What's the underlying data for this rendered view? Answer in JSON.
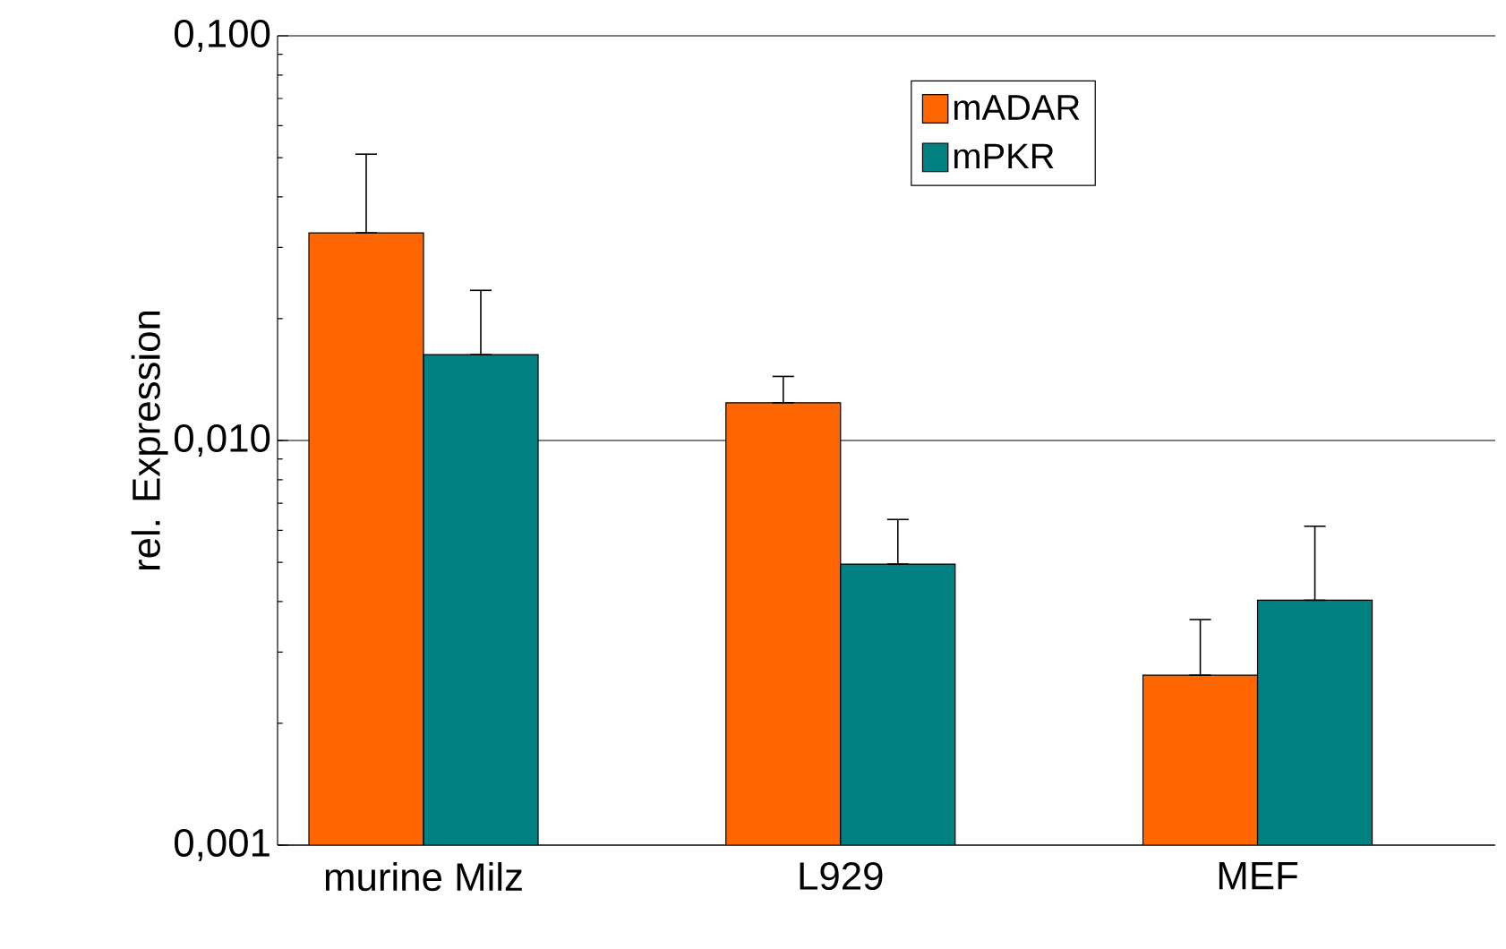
{
  "chart_data": {
    "type": "bar",
    "ylabel": "rel. Expression",
    "categories": [
      "murine Milz",
      "L929",
      "MEF"
    ],
    "series": [
      {
        "name": "mADAR",
        "color": "#ff6600",
        "values": [
          0.0326,
          0.0124,
          0.00263
        ],
        "errors": [
          [
            0.0326,
            0.051
          ],
          [
            0.0124,
            0.0144
          ],
          [
            0.00263,
            0.00361
          ]
        ]
      },
      {
        "name": "mPKR",
        "color": "#008080",
        "values": [
          0.0163,
          0.00495,
          0.00403
        ],
        "errors": [
          [
            0.0163,
            0.0235
          ],
          [
            0.00495,
            0.00638
          ],
          [
            0.00403,
            0.00614
          ]
        ]
      }
    ],
    "log": true,
    "ylim": [
      0.001,
      0.1
    ],
    "yticks": [
      {
        "value": 0.001,
        "label": "0,001"
      },
      {
        "value": 0.01,
        "label": "0,010"
      },
      {
        "value": 0.1,
        "label": "0,100"
      }
    ],
    "grid": "y",
    "legend": "top right"
  }
}
